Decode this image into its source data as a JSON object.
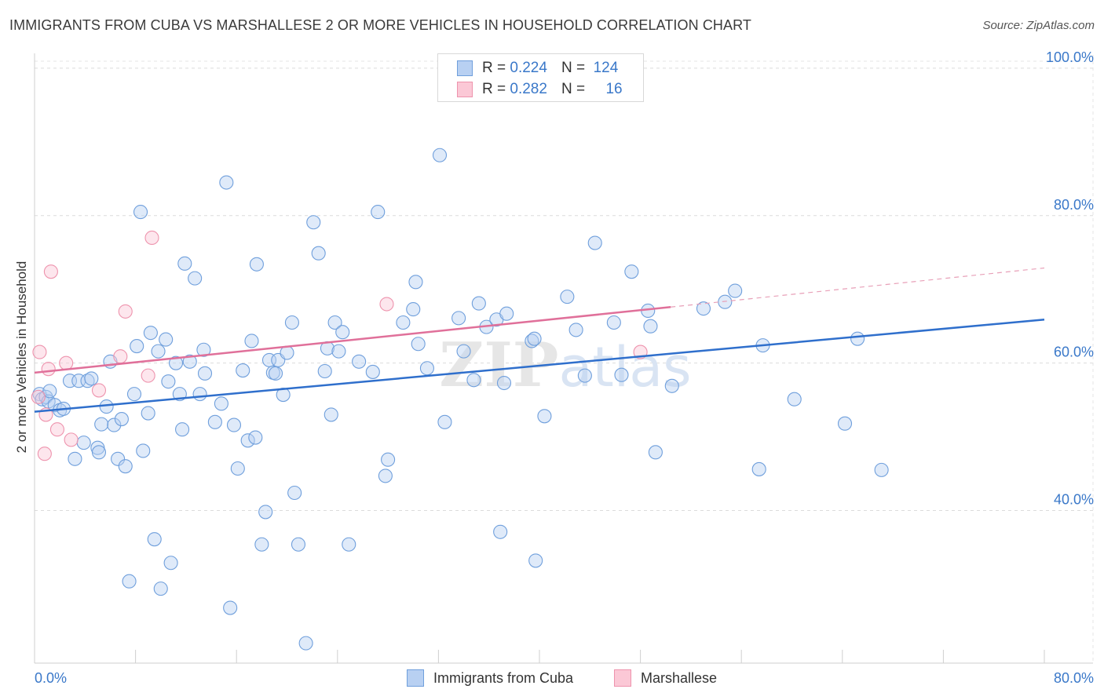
{
  "title": "IMMIGRANTS FROM CUBA VS MARSHALLESE 2 OR MORE VEHICLES IN HOUSEHOLD CORRELATION CHART",
  "source": "Source: ZipAtlas.com",
  "watermark": "ZIPatlas",
  "legend_top": {
    "rows": [
      {
        "r_label": "R =",
        "r_value": "0.224",
        "n_label": "N =",
        "n_value": "124",
        "color": "#6f9fdc"
      },
      {
        "r_label": "R =",
        "r_value": "0.282",
        "n_label": "N =",
        "n_value": "16",
        "color": "#ee93ad"
      }
    ]
  },
  "legend_bottom": {
    "items": [
      {
        "label": "Immigrants from Cuba",
        "color": "#6f9fdc"
      },
      {
        "label": "Marshallese",
        "color": "#ee93ad"
      }
    ]
  },
  "chart_data": {
    "type": "scatter",
    "title": "IMMIGRANTS FROM CUBA VS MARSHALLESE 2 OR MORE VEHICLES IN HOUSEHOLD CORRELATION CHART",
    "xlabel": "",
    "ylabel": "2 or more Vehicles in Household",
    "xlim": [
      0,
      80
    ],
    "ylim": [
      19.3,
      101.8
    ],
    "x_tick_labels": [
      "0.0%",
      "80.0%"
    ],
    "y_ticks": [
      40,
      60,
      80,
      100
    ],
    "y_tick_labels": [
      "40.0%",
      "60.0%",
      "80.0%",
      "100.0%"
    ],
    "grid": true,
    "legend": "bottom",
    "series": [
      {
        "name": "Immigrants from Cuba",
        "color": "#6f9fdc",
        "trend": {
          "x": [
            0,
            80
          ],
          "y": [
            53.4,
            65.9
          ]
        },
        "points": [
          [
            0.4,
            55.8
          ],
          [
            0.6,
            55.1
          ],
          [
            0.9,
            55.4
          ],
          [
            1.1,
            54.8
          ],
          [
            1.2,
            56.2
          ],
          [
            1.6,
            54.3
          ],
          [
            2.0,
            53.6
          ],
          [
            2.3,
            53.8
          ],
          [
            2.8,
            57.6
          ],
          [
            3.2,
            47.0
          ],
          [
            3.5,
            57.6
          ],
          [
            3.9,
            49.2
          ],
          [
            4.2,
            57.6
          ],
          [
            4.5,
            57.9
          ],
          [
            5.0,
            48.5
          ],
          [
            5.1,
            47.9
          ],
          [
            5.3,
            51.7
          ],
          [
            5.7,
            54.1
          ],
          [
            6.0,
            60.2
          ],
          [
            6.3,
            51.6
          ],
          [
            6.6,
            47.0
          ],
          [
            6.9,
            52.4
          ],
          [
            7.2,
            46.0
          ],
          [
            7.5,
            30.4
          ],
          [
            7.9,
            55.8
          ],
          [
            8.1,
            62.3
          ],
          [
            8.4,
            80.5
          ],
          [
            8.6,
            48.1
          ],
          [
            9.0,
            53.2
          ],
          [
            9.2,
            64.1
          ],
          [
            9.5,
            36.1
          ],
          [
            9.8,
            61.6
          ],
          [
            10.0,
            29.4
          ],
          [
            10.4,
            63.2
          ],
          [
            10.6,
            57.5
          ],
          [
            10.8,
            32.9
          ],
          [
            11.2,
            60.0
          ],
          [
            11.5,
            55.8
          ],
          [
            11.7,
            51.0
          ],
          [
            11.9,
            73.5
          ],
          [
            12.3,
            60.2
          ],
          [
            12.7,
            71.5
          ],
          [
            13.1,
            55.8
          ],
          [
            13.5,
            58.6
          ],
          [
            13.4,
            61.8
          ],
          [
            14.3,
            52.0
          ],
          [
            14.8,
            54.5
          ],
          [
            15.2,
            84.5
          ],
          [
            15.5,
            26.8
          ],
          [
            15.8,
            51.6
          ],
          [
            16.1,
            45.7
          ],
          [
            16.5,
            59.0
          ],
          [
            16.9,
            49.5
          ],
          [
            17.2,
            63.0
          ],
          [
            17.5,
            49.9
          ],
          [
            17.6,
            73.4
          ],
          [
            18.3,
            39.8
          ],
          [
            18.0,
            35.4
          ],
          [
            18.6,
            60.4
          ],
          [
            18.9,
            58.7
          ],
          [
            19.1,
            58.6
          ],
          [
            19.3,
            60.4
          ],
          [
            19.7,
            55.7
          ],
          [
            20.0,
            61.4
          ],
          [
            20.4,
            65.5
          ],
          [
            20.6,
            42.4
          ],
          [
            20.9,
            35.4
          ],
          [
            21.5,
            22.0
          ],
          [
            22.1,
            79.1
          ],
          [
            22.5,
            74.9
          ],
          [
            23.0,
            58.9
          ],
          [
            23.2,
            62.0
          ],
          [
            23.5,
            53.0
          ],
          [
            23.8,
            65.5
          ],
          [
            24.1,
            61.6
          ],
          [
            24.4,
            64.2
          ],
          [
            24.9,
            35.4
          ],
          [
            25.7,
            60.2
          ],
          [
            26.8,
            58.8
          ],
          [
            27.2,
            80.5
          ],
          [
            27.8,
            44.7
          ],
          [
            28.0,
            46.9
          ],
          [
            29.2,
            65.5
          ],
          [
            30.0,
            67.3
          ],
          [
            30.4,
            62.6
          ],
          [
            30.2,
            71.0
          ],
          [
            31.1,
            59.3
          ],
          [
            32.1,
            88.2
          ],
          [
            32.5,
            52.0
          ],
          [
            33.6,
            66.1
          ],
          [
            34.0,
            61.6
          ],
          [
            34.8,
            57.7
          ],
          [
            35.2,
            68.1
          ],
          [
            35.8,
            64.9
          ],
          [
            36.6,
            65.9
          ],
          [
            36.9,
            37.1
          ],
          [
            37.2,
            57.3
          ],
          [
            37.4,
            66.7
          ],
          [
            39.4,
            63.0
          ],
          [
            39.6,
            63.3
          ],
          [
            39.7,
            33.2
          ],
          [
            40.4,
            52.8
          ],
          [
            42.2,
            69.0
          ],
          [
            42.9,
            64.5
          ],
          [
            43.6,
            58.3
          ],
          [
            44.4,
            76.3
          ],
          [
            45.9,
            65.5
          ],
          [
            46.5,
            58.4
          ],
          [
            47.3,
            72.4
          ],
          [
            48.6,
            67.1
          ],
          [
            48.8,
            65.0
          ],
          [
            49.2,
            47.9
          ],
          [
            50.5,
            56.9
          ],
          [
            53.0,
            67.4
          ],
          [
            54.7,
            68.3
          ],
          [
            55.5,
            69.8
          ],
          [
            57.4,
            45.6
          ],
          [
            57.7,
            62.4
          ],
          [
            60.2,
            55.1
          ],
          [
            64.2,
            51.8
          ],
          [
            65.2,
            63.3
          ],
          [
            67.1,
            45.5
          ]
        ]
      },
      {
        "name": "Marshallese",
        "color": "#ee93ad",
        "trend": {
          "x": [
            0,
            50.4
          ],
          "y": [
            58.7,
            67.6
          ]
        },
        "trend_dashed": {
          "x": [
            50.4,
            80
          ],
          "y": [
            67.6,
            72.9
          ]
        },
        "points": [
          [
            0.3,
            55.4
          ],
          [
            0.4,
            61.5
          ],
          [
            0.8,
            47.7
          ],
          [
            0.9,
            53.0
          ],
          [
            1.1,
            59.2
          ],
          [
            1.3,
            72.4
          ],
          [
            1.8,
            51.0
          ],
          [
            2.5,
            60.0
          ],
          [
            2.9,
            49.6
          ],
          [
            5.1,
            56.3
          ],
          [
            6.8,
            60.9
          ],
          [
            7.2,
            67.0
          ],
          [
            9.0,
            58.3
          ],
          [
            9.3,
            77.0
          ],
          [
            27.9,
            68.0
          ],
          [
            48.0,
            61.5
          ]
        ]
      }
    ]
  }
}
